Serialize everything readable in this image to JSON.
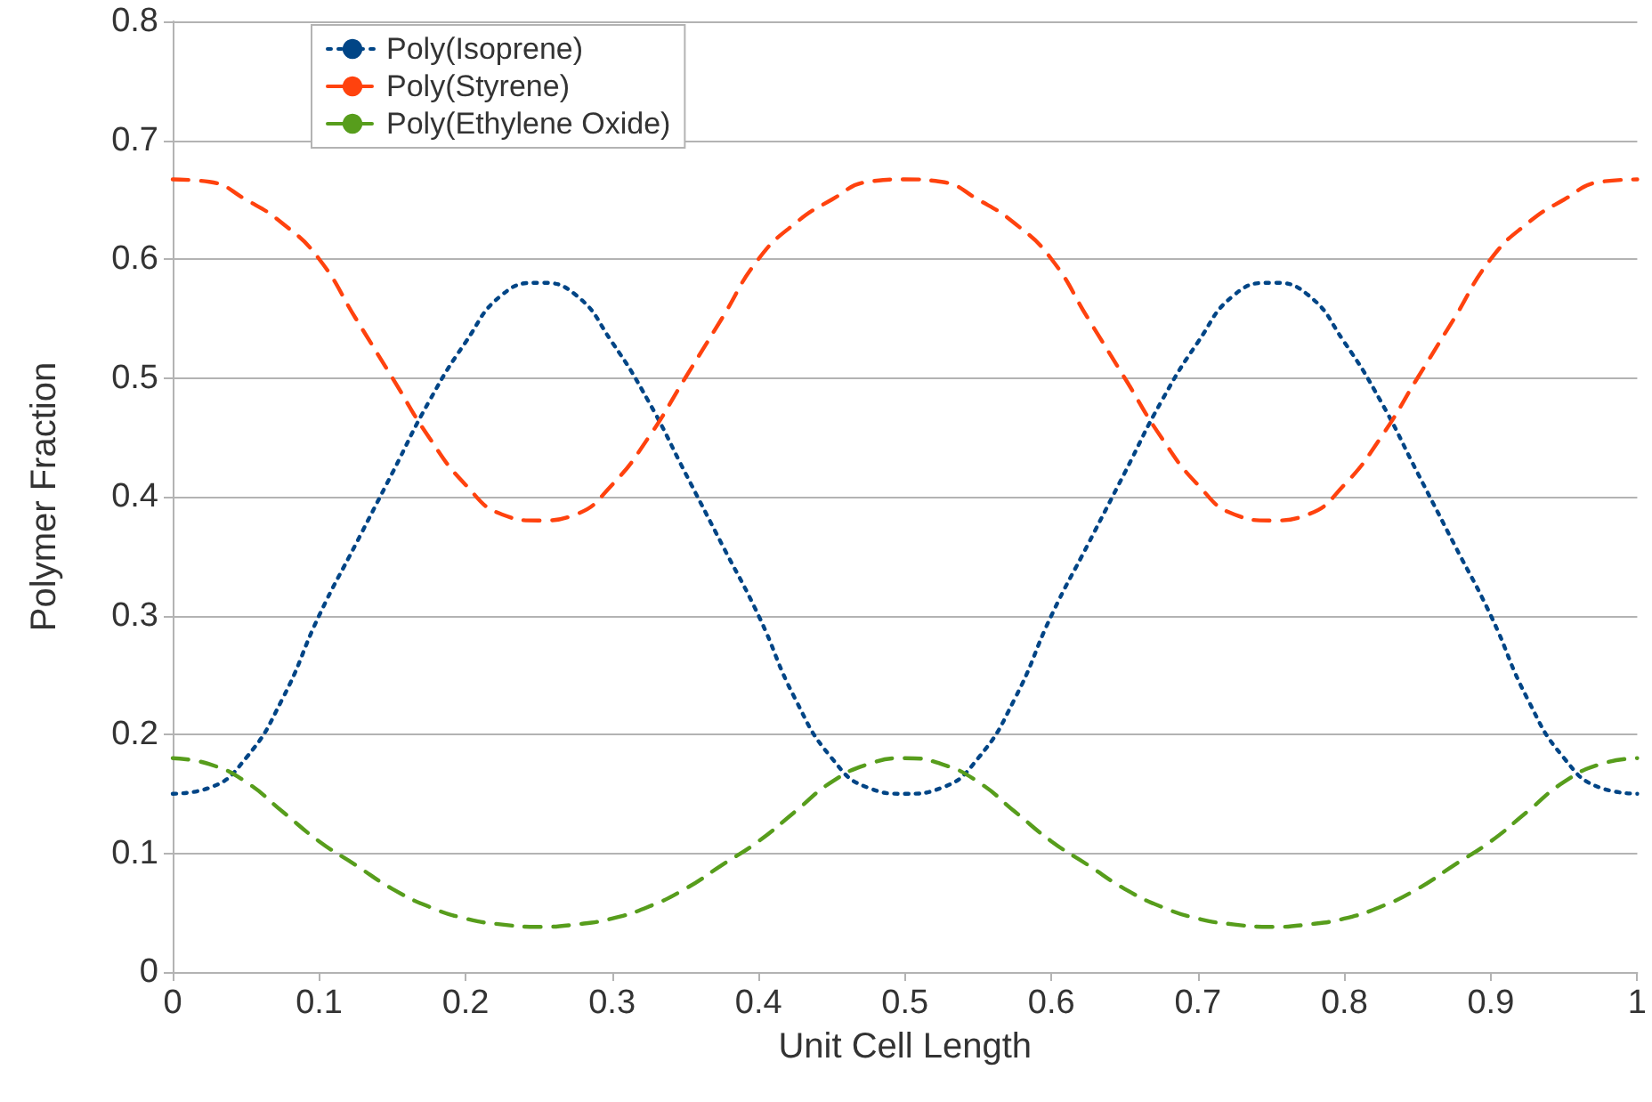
{
  "chart_data": {
    "type": "line",
    "xlabel": "Unit Cell Length",
    "ylabel": "Polymer Fraction",
    "x": [
      0,
      0.025,
      0.05,
      0.075,
      0.1,
      0.125,
      0.15,
      0.175,
      0.2,
      0.225,
      0.25,
      0.275,
      0.3,
      0.325,
      0.35,
      0.375,
      0.4,
      0.425,
      0.45,
      0.475,
      0.5,
      0.525,
      0.55,
      0.575,
      0.6,
      0.625,
      0.65,
      0.675,
      0.7,
      0.725,
      0.75,
      0.775,
      0.8,
      0.825,
      0.85,
      0.875,
      0.9,
      0.925,
      0.95,
      0.975,
      1
    ],
    "series": [
      {
        "name": "Poly(Isoprene)",
        "color": "#004586",
        "line_style": "dotted",
        "values": [
          0.15,
          0.155,
          0.18,
          0.23,
          0.3,
          0.36,
          0.42,
          0.48,
          0.53,
          0.57,
          0.58,
          0.57,
          0.53,
          0.48,
          0.42,
          0.36,
          0.3,
          0.23,
          0.18,
          0.155,
          0.15,
          0.155,
          0.18,
          0.23,
          0.3,
          0.36,
          0.42,
          0.48,
          0.53,
          0.57,
          0.58,
          0.57,
          0.53,
          0.48,
          0.42,
          0.36,
          0.3,
          0.23,
          0.18,
          0.155,
          0.15
        ]
      },
      {
        "name": "Poly(Styrene)",
        "color": "#ff420e",
        "line_style": "dashed",
        "values": [
          0.667,
          0.665,
          0.65,
          0.63,
          0.6,
          0.55,
          0.5,
          0.45,
          0.41,
          0.385,
          0.38,
          0.385,
          0.41,
          0.45,
          0.5,
          0.55,
          0.6,
          0.63,
          0.65,
          0.665,
          0.667,
          0.665,
          0.65,
          0.63,
          0.6,
          0.55,
          0.5,
          0.45,
          0.41,
          0.385,
          0.38,
          0.385,
          0.41,
          0.45,
          0.5,
          0.55,
          0.6,
          0.63,
          0.65,
          0.665,
          0.667
        ]
      },
      {
        "name": "Poly(Ethylene Oxide)",
        "color": "#579d1c",
        "line_style": "dashed",
        "values": [
          0.18,
          0.175,
          0.16,
          0.135,
          0.11,
          0.09,
          0.07,
          0.055,
          0.045,
          0.04,
          0.038,
          0.04,
          0.045,
          0.055,
          0.07,
          0.09,
          0.11,
          0.135,
          0.16,
          0.175,
          0.18,
          0.175,
          0.16,
          0.135,
          0.11,
          0.09,
          0.07,
          0.055,
          0.045,
          0.04,
          0.038,
          0.04,
          0.045,
          0.055,
          0.07,
          0.09,
          0.11,
          0.135,
          0.16,
          0.175,
          0.18
        ]
      }
    ],
    "xlim": [
      0,
      1
    ],
    "xticks": [
      0,
      0.1,
      0.2,
      0.3,
      0.4,
      0.5,
      0.6,
      0.7,
      0.8,
      0.9,
      1
    ],
    "ylim": [
      0,
      0.8
    ],
    "yticks": [
      0,
      0.1,
      0.2,
      0.3,
      0.4,
      0.5,
      0.6,
      0.7,
      0.8
    ],
    "grid": "y",
    "legend": "top left",
    "marker": "none"
  }
}
